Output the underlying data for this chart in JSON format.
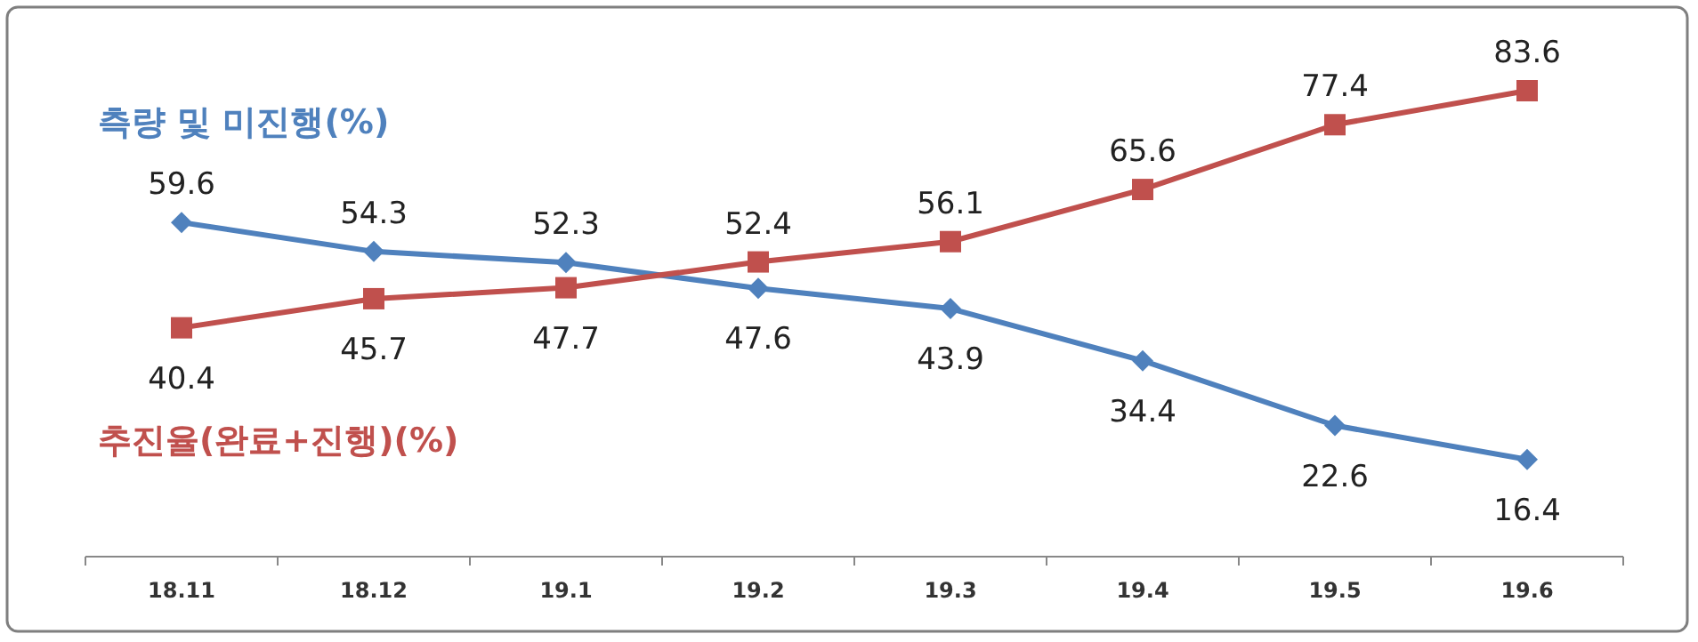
{
  "chart_data": {
    "type": "line",
    "categories": [
      "18.11",
      "18.12",
      "19.1",
      "19.2",
      "19.3",
      "19.4",
      "19.5",
      "19.6"
    ],
    "data_labels": true,
    "legend": false,
    "grid": false,
    "series": [
      {
        "name": "측량 및 미진행(%)",
        "color": "#4f81bd",
        "marker": "diamond",
        "values": [
          59.6,
          54.3,
          52.3,
          47.6,
          43.9,
          34.4,
          22.6,
          16.4
        ]
      },
      {
        "name": "추진율(완료+진행)(%)",
        "color": "#c0504d",
        "marker": "square",
        "values": [
          40.4,
          45.7,
          47.7,
          52.4,
          56.1,
          65.6,
          77.4,
          83.6
        ]
      }
    ]
  }
}
